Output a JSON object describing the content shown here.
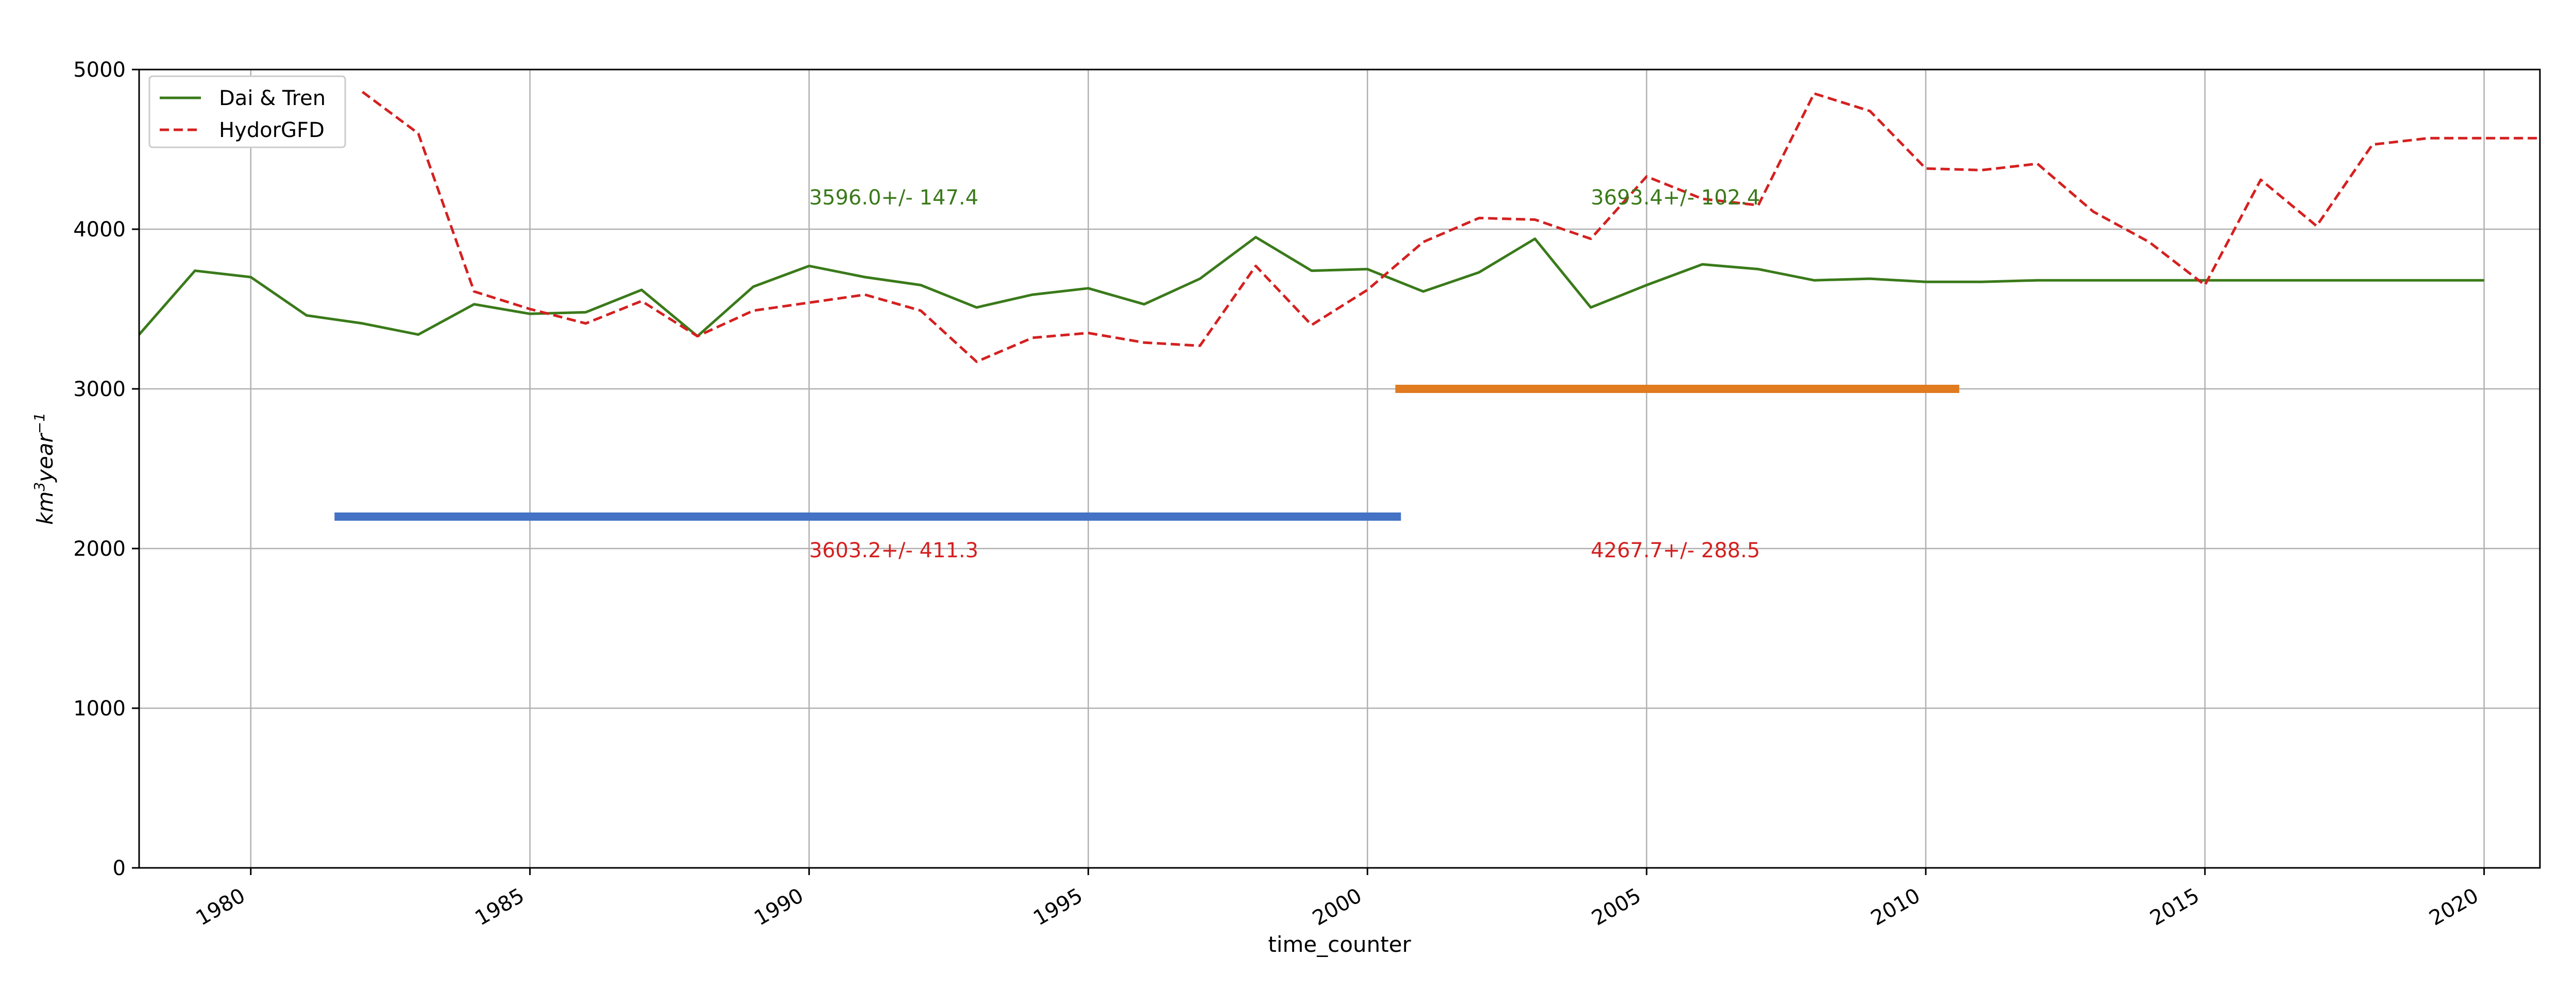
{
  "chart_data": {
    "type": "line",
    "xlabel": "time_counter",
    "ylabel": "km",
    "ylabel_sup": "3",
    "ylabel_mid": "year",
    "ylabel_sup2": "−1",
    "xlim": [
      1978,
      2021
    ],
    "ylim": [
      0,
      5000
    ],
    "x_ticks": [
      1980,
      1985,
      1990,
      1995,
      2000,
      2005,
      2010,
      2015,
      2020
    ],
    "y_ticks": [
      0,
      1000,
      2000,
      3000,
      4000,
      5000
    ],
    "grid": true,
    "legend_position": "top-left",
    "series": [
      {
        "name": "Dai & Tren",
        "color": "#3a7a1a",
        "style": "solid",
        "x": [
          1978,
          1979,
          1980,
          1981,
          1982,
          1983,
          1984,
          1985,
          1986,
          1987,
          1988,
          1989,
          1990,
          1991,
          1992,
          1993,
          1994,
          1995,
          1996,
          1997,
          1998,
          1999,
          2000,
          2001,
          2002,
          2003,
          2004,
          2005,
          2006,
          2007,
          2008,
          2009,
          2010,
          2011,
          2012,
          2013,
          2014,
          2015,
          2016,
          2017,
          2018,
          2019,
          2020
        ],
        "values": [
          3340,
          3740,
          3700,
          3460,
          3410,
          3340,
          3530,
          3470,
          3480,
          3620,
          3330,
          3640,
          3770,
          3700,
          3650,
          3510,
          3590,
          3630,
          3530,
          3690,
          3950,
          3740,
          3750,
          3610,
          3730,
          3940,
          3510,
          3650,
          3780,
          3750,
          3680,
          3690,
          3670,
          3670,
          3680,
          3680,
          3680,
          3680,
          3680,
          3680,
          3680,
          3680,
          3680
        ]
      },
      {
        "name": "HydorGFD",
        "color": "#d42020",
        "style": "dashed",
        "x": [
          1982,
          1983,
          1984,
          1985,
          1986,
          1987,
          1988,
          1989,
          1990,
          1991,
          1992,
          1993,
          1994,
          1995,
          1996,
          1997,
          1998,
          1999,
          2000,
          2001,
          2002,
          2003,
          2004,
          2005,
          2006,
          2007,
          2008,
          2009,
          2010,
          2011,
          2012,
          2013,
          2014,
          2015,
          2016,
          2017,
          2018,
          2019,
          2020,
          2021
        ],
        "values": [
          4860,
          4600,
          3610,
          3500,
          3410,
          3550,
          3330,
          3490,
          3540,
          3590,
          3490,
          3170,
          3320,
          3350,
          3290,
          3270,
          3770,
          3400,
          3620,
          3920,
          4070,
          4060,
          3940,
          4330,
          4190,
          4150,
          4850,
          4740,
          4380,
          4370,
          4410,
          4110,
          3920,
          3650,
          4310,
          4020,
          4530,
          4570,
          4570,
          4570
        ]
      }
    ],
    "period_bars": [
      {
        "x_start": 1981.5,
        "x_end": 2000.6,
        "y": 2200,
        "color": "#4472c4"
      },
      {
        "x_start": 2000.5,
        "x_end": 2010.6,
        "y": 3000,
        "color": "#e07b20"
      }
    ],
    "annotations": [
      {
        "text": "3596.0+/- 147.4",
        "x": 1990,
        "y": 4200,
        "color": "#3a7a1a"
      },
      {
        "text": "3693.4+/- 102.4",
        "x": 2004,
        "y": 4200,
        "color": "#3a7a1a"
      },
      {
        "text": "3603.2+/- 411.3",
        "x": 1990,
        "y": 1990,
        "color": "#d42020"
      },
      {
        "text": "4267.7+/- 288.5",
        "x": 2004,
        "y": 1990,
        "color": "#d42020"
      }
    ]
  }
}
